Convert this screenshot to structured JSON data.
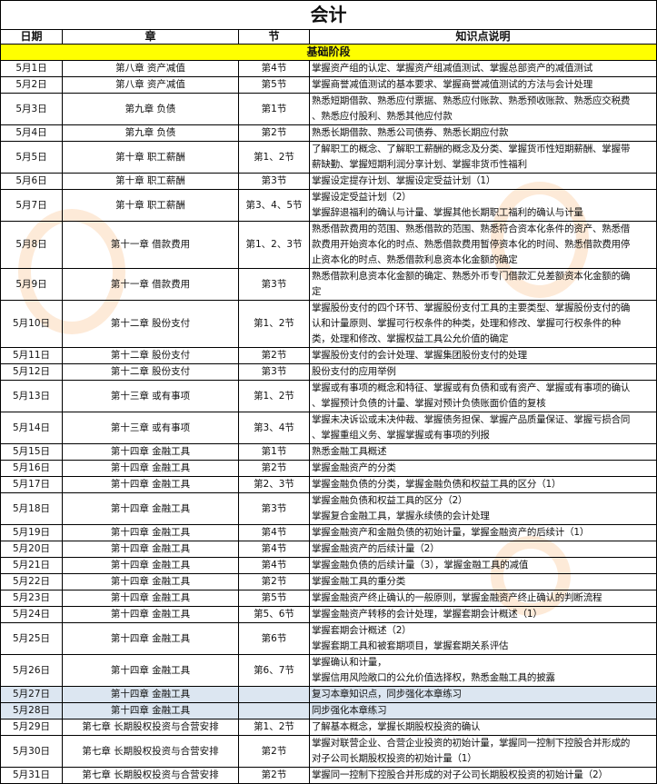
{
  "title": "会计",
  "headers": [
    "日期",
    "章",
    "节",
    "知识点说明"
  ],
  "stage": "基础阶段",
  "rows": [
    {
      "date": "5月1日",
      "chapter": "第八章  资产减值",
      "section": "第4节",
      "desc": "掌握资产组的认定、掌握资产组减值测试、掌握总部资产的减值测试",
      "lines": 1
    },
    {
      "date": "5月2日",
      "chapter": "第八章  资产减值",
      "section": "第5节",
      "desc": "掌握商誉减值测试的基本要求、掌握商誉减值测试的方法与会计处理",
      "lines": 1
    },
    {
      "date": "5月3日",
      "chapter": "第九章  负债",
      "section": "第1节",
      "desc": "熟悉短期借款、熟悉应付票据、熟悉应付账款、熟悉预收账款、熟悉应交税费\n、熟悉应付股利、熟悉其他应付款",
      "lines": 2
    },
    {
      "date": "5月4日",
      "chapter": "第九章  负债",
      "section": "第2节",
      "desc": "熟悉长期借款、熟悉公司债券、熟悉长期应付款",
      "lines": 1
    },
    {
      "date": "5月5日",
      "chapter": "第十章  职工薪酬",
      "section": "第1、2节",
      "desc": "了解职工的概念、了解职工薪酬的概念及分类、掌握货币性短期薪酬、掌握带\n薪缺勤、掌握短期利润分享计划、掌握非货币性福利",
      "lines": 2
    },
    {
      "date": "5月6日",
      "chapter": "第十章  职工薪酬",
      "section": "第3节",
      "desc": "掌握设定提存计划、掌握设定受益计划（1）",
      "lines": 1
    },
    {
      "date": "5月7日",
      "chapter": "第十章  职工薪酬",
      "section": "第3、4、5节",
      "desc": "掌握设定受益计划（2）\n掌握辞退福利的确认与计量、掌握其他长期职工福利的确认与计量",
      "lines": 2
    },
    {
      "date": "5月8日",
      "chapter": "第十一章  借款费用",
      "section": "第1、2、3节",
      "desc": "熟悉借款费用的范围、熟悉借款的范围、熟悉符合资本化条件的资产、熟悉借\n款费用开始资本化的时点、熟悉借款费用暂停资本化的时间、熟悉借款费用停\n止资本化的时点、熟悉借款利息资本化金额的确定",
      "lines": 3
    },
    {
      "date": "5月9日",
      "chapter": "第十一章  借款费用",
      "section": "第3节",
      "desc": "熟悉借款利息资本化金额的确定、熟悉外币专门借款汇兑差额资本化金额的确\n定",
      "lines": 2
    },
    {
      "date": "5月10日",
      "chapter": "第十二章  股份支付",
      "section": "第1、2节",
      "desc": "掌握股份支付的四个环节、掌握股份支付工具的主要类型、掌握股份支付的确\n认和计量原则、掌握可行权条件的种类，处理和修改、掌握可行权条件的种\n类，处理和修改、掌握权益工具公允价值的确定",
      "lines": 3
    },
    {
      "date": "5月11日",
      "chapter": "第十二章  股份支付",
      "section": "第2节",
      "desc": "掌握股份支付的会计处理、掌握集团股份支付的处理",
      "lines": 1
    },
    {
      "date": "5月12日",
      "chapter": "第十二章  股份支付",
      "section": "第3节",
      "desc": "股份支付的应用举例",
      "lines": 1
    },
    {
      "date": "5月13日",
      "chapter": "第十三章  或有事项",
      "section": "第1、2节",
      "desc": "掌握或有事项的概念和特征、掌握或有负债和或有资产、掌握或有事项的确认\n、掌握预计负债的计量、掌握对预计负债账面价值的复核",
      "lines": 2
    },
    {
      "date": "5月14日",
      "chapter": "第十三章  或有事项",
      "section": "第3、4节",
      "desc": "掌握未决诉讼或未决仲裁、掌握债务担保、掌握产品质量保证、掌握亏损合同\n、掌握重组义务、掌握掌握或有事项的列报",
      "lines": 2
    },
    {
      "date": "5月15日",
      "chapter": "第十四章 金融工具",
      "section": "第1节",
      "desc": "熟悉金融工具概述",
      "lines": 1
    },
    {
      "date": "5月16日",
      "chapter": "第十四章 金融工具",
      "section": "第2节",
      "desc": "掌握金融资产的分类",
      "lines": 1
    },
    {
      "date": "5月17日",
      "chapter": "第十四章 金融工具",
      "section": "第2、3节",
      "desc": "掌握金融负债的分类，掌握金融负债和权益工具的区分（1）",
      "lines": 1
    },
    {
      "date": "5月18日",
      "chapter": "第十四章 金融工具",
      "section": "第3节",
      "desc": "掌握金融负债和权益工具的区分（2）\n掌握复合金融工具，掌握永续债的会计处理",
      "lines": 2
    },
    {
      "date": "5月19日",
      "chapter": "第十四章 金融工具",
      "section": "第4节",
      "desc": "掌握金融资产和金融负债的初始计量，掌握金融资产的后续计（1）",
      "lines": 1
    },
    {
      "date": "5月20日",
      "chapter": "第十四章 金融工具",
      "section": "第4节",
      "desc": "掌握金融资产的后续计量（2）",
      "lines": 1
    },
    {
      "date": "5月21日",
      "chapter": "第十四章 金融工具",
      "section": "第4节",
      "desc": "掌握金融负债的后续计量（3），掌握金融工具的减值",
      "lines": 1
    },
    {
      "date": "5月22日",
      "chapter": "第十四章 金融工具",
      "section": "第2节",
      "desc": "掌握金融工具的重分类",
      "lines": 1
    },
    {
      "date": "5月23日",
      "chapter": "第十四章 金融工具",
      "section": "第5节",
      "desc": "掌握金融资产终止确认的一般原则，掌握金融资产终止确认的判断流程",
      "lines": 1
    },
    {
      "date": "5月24日",
      "chapter": "第十四章 金融工具",
      "section": "第5、6节",
      "desc": "掌握金融资产转移的会计处理，掌握套期会计概述（1）",
      "lines": 1
    },
    {
      "date": "5月25日",
      "chapter": "第十四章 金融工具",
      "section": "第6节",
      "desc": "掌握套期会计概述（2）\n掌握套期工具和被套期项目，掌握套期关系评估",
      "lines": 2
    },
    {
      "date": "5月26日",
      "chapter": "第十四章 金融工具",
      "section": "第6、7节",
      "desc": "掌握确认和计量，\n掌握信用风险敞口的公允价值选择权，熟悉金融工具的披露",
      "lines": 2
    },
    {
      "date": "5月27日",
      "chapter": "第十四章 金融工具",
      "section": "",
      "desc": "复习本章知识点，同步强化本章练习",
      "lines": 1,
      "highlight": true
    },
    {
      "date": "5月28日",
      "chapter": "第十四章 金融工具",
      "section": "",
      "desc": "同步强化本章练习",
      "lines": 1,
      "highlight": true
    },
    {
      "date": "5月29日",
      "chapter": "第七章  长期股权投资与合营安排",
      "section": "第1、2节",
      "desc": "了解基本概念，掌握长期股权投资的确认",
      "lines": 1
    },
    {
      "date": "5月30日",
      "chapter": "第七章  长期股权投资与合营安排",
      "section": "第2节",
      "desc": "掌握对联营企业、合营企业投资的初始计量，掌握同一控制下控股合并形成的\n对子公司长期股权投资的初始计量（1）",
      "lines": 2
    },
    {
      "date": "5月31日",
      "chapter": "第七章  长期股权投资与合营安排",
      "section": "第2节",
      "desc": "掌握同一控制下控股合并形成的对子公司长期股权投资的初始计量（2）",
      "lines": 1
    }
  ],
  "colors": {
    "stage_bg": "#ffff00",
    "highlight_bg": "#dce6f1",
    "watermark": "#f58c28"
  }
}
